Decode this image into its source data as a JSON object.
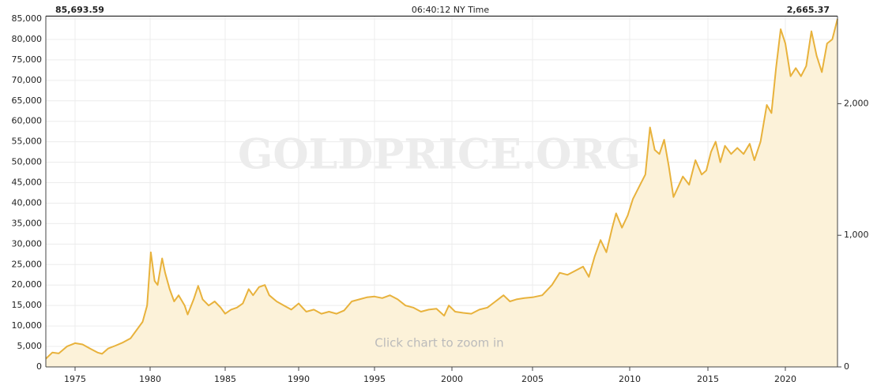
{
  "chart_data": {
    "type": "line",
    "header": {
      "left": "85,693.59",
      "center": "06:40:12 NY Time",
      "right": "2,665.37"
    },
    "watermark": "GOLDPRICE.ORG",
    "annotation": "Click chart to zoom in",
    "x": [
      1973.2,
      1973.6,
      1974.0,
      1974.5,
      1975.0,
      1975.5,
      1976.0,
      1976.5,
      1976.8,
      1977.2,
      1977.7,
      1978.2,
      1978.7,
      1979.0,
      1979.5,
      1979.8,
      1980.05,
      1980.3,
      1980.5,
      1980.8,
      1981.0,
      1981.3,
      1981.6,
      1981.9,
      1982.3,
      1982.5,
      1982.9,
      1983.2,
      1983.5,
      1983.9,
      1984.3,
      1984.7,
      1985.0,
      1985.4,
      1985.8,
      1986.2,
      1986.6,
      1986.9,
      1987.3,
      1987.7,
      1988.0,
      1988.5,
      1989.0,
      1989.5,
      1990.0,
      1990.5,
      1991.0,
      1991.5,
      1992.0,
      1992.5,
      1993.0,
      1993.5,
      1994.0,
      1994.5,
      1995.0,
      1995.5,
      1996.0,
      1996.5,
      1997.0,
      1997.5,
      1998.0,
      1998.5,
      1999.0,
      1999.5,
      1999.8,
      2000.2,
      2000.7,
      2001.2,
      2001.7,
      2002.2,
      2002.7,
      2003.2,
      2003.6,
      2004.0,
      2004.5,
      2005.0,
      2005.5,
      2006.0,
      2006.4,
      2006.8,
      2007.2,
      2007.6,
      2007.9,
      2008.2,
      2008.5,
      2008.8,
      2009.1,
      2009.3,
      2009.6,
      2009.9,
      2010.2,
      2010.6,
      2011.0,
      2011.3,
      2011.6,
      2011.9,
      2012.2,
      2012.5,
      2012.8,
      2013.1,
      2013.4,
      2013.8,
      2014.2,
      2014.6,
      2014.9,
      2015.2,
      2015.5,
      2015.8,
      2016.1,
      2016.5,
      2016.9,
      2017.3,
      2017.7,
      2018.0,
      2018.4,
      2018.8,
      2019.1,
      2019.4,
      2019.7,
      2020.0,
      2020.3,
      2020.6,
      2020.9,
      2021.2,
      2021.5,
      2021.8,
      2022.1,
      2022.4,
      2022.7,
      2023.0
    ],
    "series": [
      {
        "color": "#e8b23c",
        "fill": "#fcf2d9",
        "values": [
          2000,
          3500,
          3300,
          5000,
          5800,
          5500,
          4500,
          3500,
          3200,
          4500,
          5200,
          6000,
          7000,
          8500,
          11000,
          15000,
          28000,
          21000,
          20000,
          26500,
          23000,
          19000,
          16000,
          17500,
          15000,
          12800,
          16500,
          19800,
          16500,
          15000,
          16000,
          14500,
          13000,
          14000,
          14500,
          15500,
          19000,
          17500,
          19500,
          20000,
          17500,
          16000,
          15000,
          14000,
          15500,
          13500,
          14000,
          13000,
          13500,
          13000,
          13800,
          16000,
          16500,
          17000,
          17200,
          16800,
          17500,
          16500,
          15000,
          14500,
          13500,
          14000,
          14200,
          12500,
          15000,
          13500,
          13200,
          13000,
          14000,
          14500,
          16000,
          17500,
          16000,
          16500,
          16800,
          17000,
          17500,
          20000,
          23000,
          22500,
          23500,
          24500,
          22000,
          27000,
          31000,
          28000,
          34000,
          37500,
          34000,
          37000,
          41000,
          44000,
          47000,
          58500,
          53000,
          52000,
          55500,
          49000,
          41500,
          44000,
          46500,
          44500,
          50500,
          47000,
          48000,
          52500,
          55000,
          50000,
          54000,
          52000,
          53500,
          52000,
          54500,
          50500,
          55000,
          64000,
          62000,
          73000,
          82500,
          79000,
          71000,
          73000,
          71000,
          73500,
          82000,
          76000,
          72000,
          79000,
          80000,
          85000
        ]
      }
    ],
    "xlim": [
      1973.2,
      2023.0
    ],
    "xticks": [
      1975,
      1980,
      1985,
      1990,
      1995,
      2000,
      2005,
      2010,
      2015,
      2020
    ],
    "ylim": [
      0,
      85693.59
    ],
    "yticks": [
      0,
      {
        "value": 5000,
        "label": "5,000"
      },
      {
        "value": 10000,
        "label": "10,000"
      },
      {
        "value": 15000,
        "label": "15,000"
      },
      {
        "value": 20000,
        "label": "20,000"
      },
      {
        "value": 25000,
        "label": "25,000"
      },
      {
        "value": 30000,
        "label": "30,000"
      },
      {
        "value": 35000,
        "label": "35,000"
      },
      {
        "value": 40000,
        "label": "40,000"
      },
      {
        "value": 45000,
        "label": "45,000"
      },
      {
        "value": 50000,
        "label": "50,000"
      },
      {
        "value": 55000,
        "label": "55,000"
      },
      {
        "value": 60000,
        "label": "60,000"
      },
      {
        "value": 65000,
        "label": "65,000"
      },
      {
        "value": 70000,
        "label": "70,000"
      },
      {
        "value": 75000,
        "label": "75,000"
      },
      {
        "value": 80000,
        "label": "80,000"
      },
      {
        "value": 85000,
        "label": "85,000"
      }
    ],
    "y2lim": [
      0,
      2665.37
    ],
    "y2ticks": [
      0,
      {
        "value": 1000,
        "label": "1,000"
      },
      {
        "value": 2000,
        "label": "2,000"
      }
    ],
    "grid": true
  }
}
